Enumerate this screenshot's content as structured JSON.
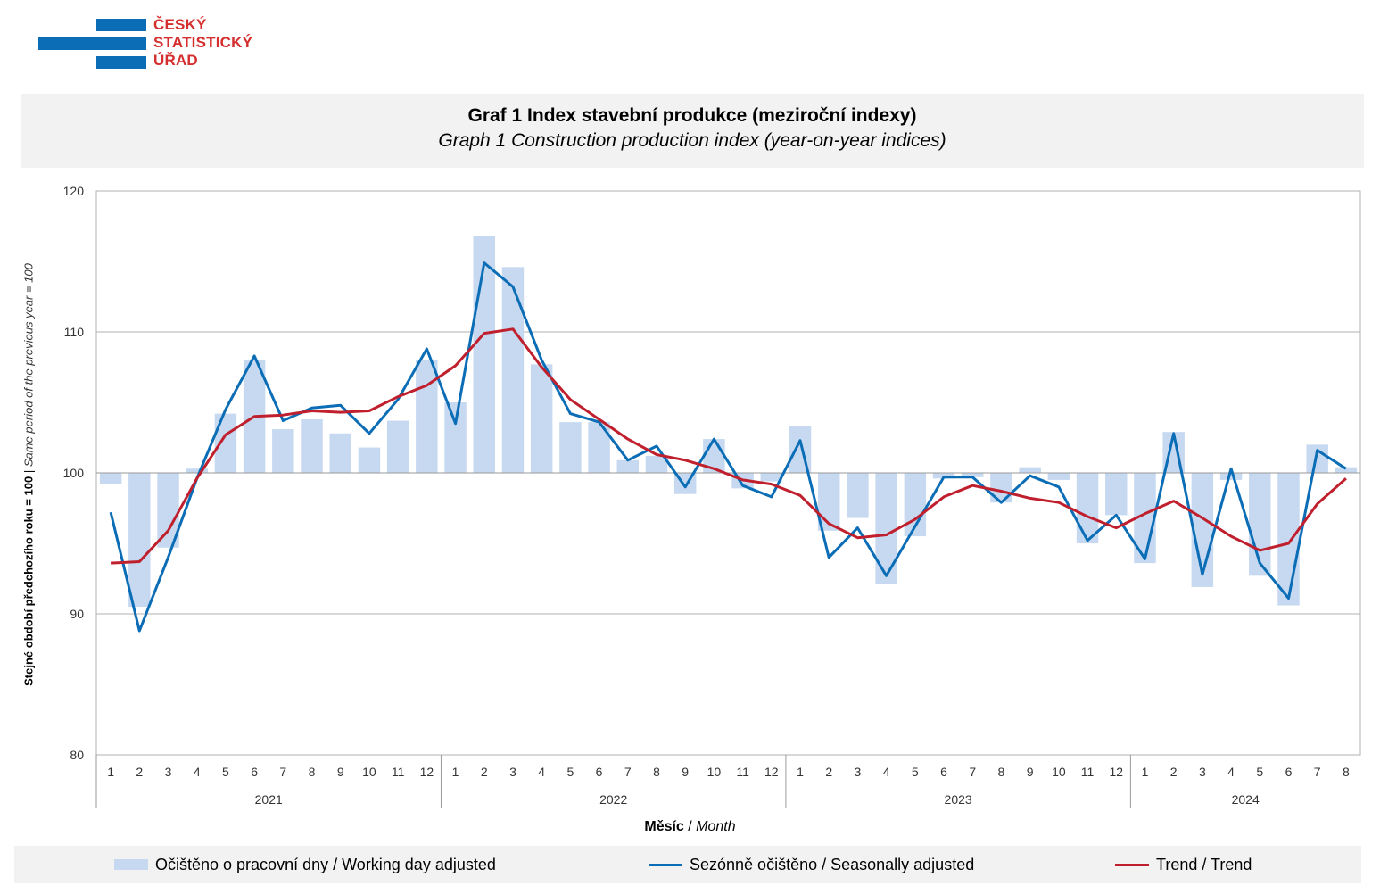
{
  "logo": {
    "line1": "ČESKÝ",
    "line2": "STATISTICKÝ",
    "line3": "ÚŘAD"
  },
  "title": {
    "cz": "Graf 1 Index stavební produkce (meziroční indexy)",
    "en": "Graph 1 Construction production index (year-on-year indices)"
  },
  "axis": {
    "ylabel_cz": "Stejné období předchozího roku = 100",
    "ylabel_sep": " | ",
    "ylabel_en": "Same period of  the previous year = 100",
    "xlabel_cz": "Měsíc",
    "xlabel_sep": " / ",
    "xlabel_en": "Month"
  },
  "legend": {
    "bars": "Očištěno o pracovní dny / Working day adjusted",
    "seasonal": "Sezónně očištěno / Seasonally adjusted",
    "trend": "Trend / Trend"
  },
  "colors": {
    "bars": "#c6d9f1",
    "seasonal": "#0b6db5",
    "trend": "#c0202e",
    "grid": "#b0b0b0"
  },
  "chart_data": {
    "type": "bar",
    "title": "Graf 1 Index stavební produkce (meziroční indexy)",
    "ylim": [
      80,
      120
    ],
    "yticks": [
      80,
      90,
      100,
      110,
      120
    ],
    "baseline": 100,
    "years": [
      {
        "label": "2021",
        "months": 12
      },
      {
        "label": "2022",
        "months": 12
      },
      {
        "label": "2023",
        "months": 12
      },
      {
        "label": "2024",
        "months": 8
      }
    ],
    "categories": [
      "1",
      "2",
      "3",
      "4",
      "5",
      "6",
      "7",
      "8",
      "9",
      "10",
      "11",
      "12",
      "1",
      "2",
      "3",
      "4",
      "5",
      "6",
      "7",
      "8",
      "9",
      "10",
      "11",
      "12",
      "1",
      "2",
      "3",
      "4",
      "5",
      "6",
      "7",
      "8",
      "9",
      "10",
      "11",
      "12",
      "1",
      "2",
      "3",
      "4",
      "5",
      "6",
      "7",
      "8"
    ],
    "series": [
      {
        "name": "Očištěno o pracovní dny / Working day adjusted",
        "kind": "bar",
        "values": [
          99.2,
          90.5,
          94.7,
          100.3,
          104.2,
          108.0,
          103.1,
          103.8,
          102.8,
          101.8,
          103.7,
          108.0,
          105.0,
          116.8,
          114.6,
          107.7,
          103.6,
          103.6,
          100.9,
          101.2,
          98.5,
          102.4,
          98.9,
          99.4,
          103.3,
          95.9,
          96.8,
          92.1,
          95.5,
          99.6,
          99.7,
          97.9,
          100.4,
          99.5,
          95.0,
          97.0,
          93.6,
          102.9,
          91.9,
          99.5,
          92.7,
          90.6,
          102.0,
          100.4
        ]
      },
      {
        "name": "Sezónně očištěno / Seasonally adjusted",
        "kind": "line",
        "values": [
          97.2,
          88.8,
          94.0,
          99.6,
          104.5,
          108.3,
          103.7,
          104.6,
          104.8,
          102.8,
          105.2,
          108.8,
          103.5,
          114.9,
          113.2,
          108.0,
          104.2,
          103.6,
          100.9,
          101.9,
          99.0,
          102.4,
          99.1,
          98.3,
          102.3,
          94.0,
          96.1,
          92.7,
          96.2,
          99.7,
          99.7,
          97.9,
          99.8,
          99.0,
          95.2,
          97.0,
          93.9,
          102.8,
          92.8,
          100.3,
          93.6,
          91.1,
          101.6,
          100.3
        ]
      },
      {
        "name": "Trend / Trend",
        "kind": "line",
        "values": [
          93.6,
          93.7,
          95.9,
          99.6,
          102.7,
          104.0,
          104.1,
          104.4,
          104.3,
          104.4,
          105.4,
          106.2,
          107.6,
          109.9,
          110.2,
          107.5,
          105.2,
          103.8,
          102.4,
          101.3,
          100.9,
          100.3,
          99.5,
          99.2,
          98.4,
          96.4,
          95.4,
          95.6,
          96.7,
          98.3,
          99.1,
          98.7,
          98.2,
          97.9,
          96.9,
          96.1,
          97.1,
          98.0,
          96.8,
          95.5,
          94.5,
          95.0,
          97.8,
          99.6
        ]
      }
    ],
    "xlabel": "Měsíc / Month",
    "ylabel": "Stejné období předchozího roku = 100 | Same period of  the previous year = 100",
    "legend_position": "bottom"
  }
}
